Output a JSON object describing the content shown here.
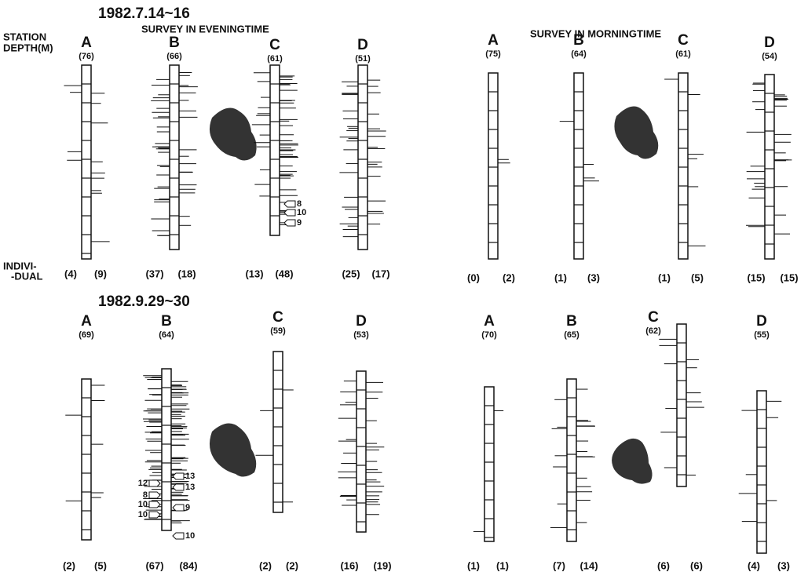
{
  "titles": {
    "date1": "1982.7.14~16",
    "evening": "SURVEY  IN EVENINGTIME",
    "morning": "SURVEY IN MORNINGTIME",
    "date2": "1982.9.29~30"
  },
  "labels": {
    "station": "STATION",
    "depth": "DEPTH(M)",
    "indivi": "INDIVI-",
    "dual": "-DUAL"
  },
  "panels": [
    {
      "stations": [
        {
          "station": "A",
          "depth": "(76)",
          "left": "(4)",
          "right": "(9)"
        },
        {
          "station": "B",
          "depth": "(66)",
          "left": "(37)",
          "right": "(18)"
        },
        {
          "station": "C",
          "depth": "(61)",
          "left": "(13)",
          "right": "(48)"
        },
        {
          "station": "D",
          "depth": "(51)",
          "left": "(25)",
          "right": "(17)"
        }
      ],
      "arrows": [
        "8",
        "10",
        "9"
      ]
    },
    {
      "stations": [
        {
          "station": "A",
          "depth": "(75)",
          "left": "(0)",
          "right": "(2)"
        },
        {
          "station": "B",
          "depth": "(64)",
          "left": "(1)",
          "right": "(3)"
        },
        {
          "station": "C",
          "depth": "(61)",
          "left": "(1)",
          "right": "(5)"
        },
        {
          "station": "D",
          "depth": "(54)",
          "left": "(15)",
          "right": "(15)"
        }
      ],
      "arrows": []
    },
    {
      "stations": [
        {
          "station": "A",
          "depth": "(69)",
          "left": "(2)",
          "right": "(5)"
        },
        {
          "station": "B",
          "depth": "(64)",
          "left": "(67)",
          "right": "(84)"
        },
        {
          "station": "C",
          "depth": "(59)",
          "left": "(2)",
          "right": "(2)"
        },
        {
          "station": "D",
          "depth": "(53)",
          "left": "(16)",
          "right": "(19)"
        }
      ],
      "arrows": [
        "13",
        "13",
        "9",
        "10",
        "12",
        "8",
        "10",
        "10"
      ]
    },
    {
      "stations": [
        {
          "station": "A",
          "depth": "(70)",
          "left": "(1)",
          "right": "(1)"
        },
        {
          "station": "B",
          "depth": "(65)",
          "left": "(7)",
          "right": "(14)"
        },
        {
          "station": "C",
          "depth": "(62)",
          "left": "(6)",
          "right": "(6)"
        },
        {
          "station": "D",
          "depth": "(55)",
          "left": "(4)",
          "right": "(3)"
        }
      ],
      "arrows": []
    }
  ]
}
